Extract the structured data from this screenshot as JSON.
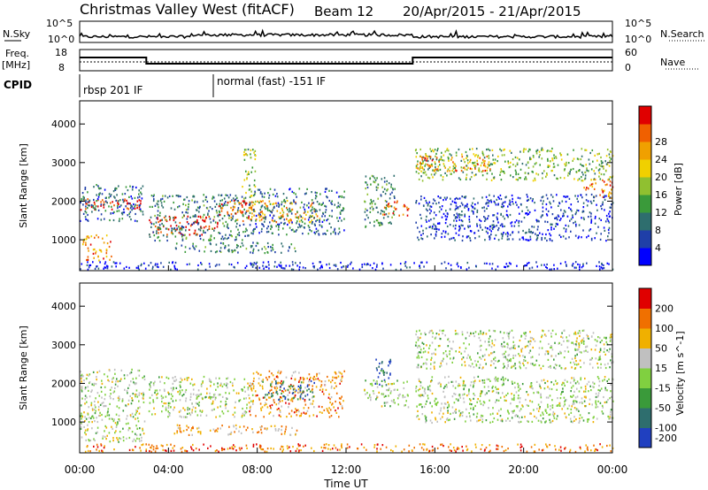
{
  "header": {
    "station": "Christmas Valley West (fitACF)",
    "beam": "Beam 12",
    "dates": "20/Apr/2015 - 21/Apr/2015"
  },
  "nsky": {
    "label": "N.Sky",
    "left_ticks": [
      "10^5",
      "10^0"
    ],
    "right_label": "N.Search",
    "right_ticks": [
      "10^5",
      "10^0"
    ]
  },
  "freq": {
    "label_line1": "Freq.",
    "label_line2": "[MHz]",
    "left_ticks": [
      "18",
      "8"
    ],
    "right_label": "Nave",
    "right_ticks": [
      "60",
      "0"
    ]
  },
  "cpid": {
    "label": "CPID",
    "segments": [
      {
        "label": "rbsp 201 IF",
        "start_hour": 0
      },
      {
        "label": "normal (fast) -151 IF",
        "start_hour": 6
      }
    ]
  },
  "freq_trace": {
    "x_hours": [
      0,
      3,
      3,
      15,
      15,
      24
    ],
    "mhz": [
      13.5,
      13.5,
      10,
      10,
      13.5,
      13.5
    ]
  },
  "chart_data": [
    {
      "type": "heatmap",
      "name": "power-panel",
      "ylabel": "Slant Range [km]",
      "yticks": [
        1000,
        2000,
        3000,
        4000
      ],
      "ylim": [
        200,
        4600
      ],
      "xlim": [
        0,
        24
      ],
      "colorbar": {
        "label": "Power [dB]",
        "ticks": [
          "4",
          "8",
          "12",
          "16",
          "20",
          "24",
          "28"
        ],
        "colors": [
          "#0000ff",
          "#1f3fa8",
          "#2e6e6e",
          "#3a9a3a",
          "#90c030",
          "#f0d000",
          "#f0a000",
          "#f06000",
          "#e00000"
        ]
      },
      "scatter_bands": [
        {
          "t0": 0.0,
          "t1": 2.9,
          "r0": 1800,
          "r1": 2100,
          "level": 0.95
        },
        {
          "t0": 0.0,
          "t1": 2.9,
          "r0": 1500,
          "r1": 2450,
          "level": 0.25
        },
        {
          "t0": 0.1,
          "t1": 1.4,
          "r0": 480,
          "r1": 1150,
          "level": 0.75
        },
        {
          "t0": 3.1,
          "t1": 6.2,
          "r0": 1150,
          "r1": 1650,
          "level": 0.95
        },
        {
          "t0": 3.1,
          "t1": 7.6,
          "r0": 1000,
          "r1": 2200,
          "level": 0.3
        },
        {
          "t0": 6.2,
          "t1": 7.8,
          "r0": 1500,
          "r1": 2050,
          "level": 0.85
        },
        {
          "t0": 7.3,
          "t1": 7.9,
          "r0": 2100,
          "r1": 3400,
          "level": 0.5
        },
        {
          "t0": 4.2,
          "t1": 9.8,
          "r0": 680,
          "r1": 950,
          "level": 0.3
        },
        {
          "t0": 7.6,
          "t1": 10.8,
          "r0": 1450,
          "r1": 2050,
          "level": 0.7
        },
        {
          "t0": 7.6,
          "t1": 11.9,
          "r0": 1150,
          "r1": 2350,
          "level": 0.25
        },
        {
          "t0": 12.8,
          "t1": 14.2,
          "r0": 1350,
          "r1": 2700,
          "level": 0.35
        },
        {
          "t0": 13.6,
          "t1": 14.8,
          "r0": 1650,
          "r1": 2050,
          "level": 0.85
        },
        {
          "t0": 15.1,
          "t1": 24.0,
          "r0": 2550,
          "r1": 3400,
          "level": 0.45
        },
        {
          "t0": 15.1,
          "t1": 18.5,
          "r0": 2800,
          "r1": 3200,
          "level": 0.75
        },
        {
          "t0": 22.6,
          "t1": 24.0,
          "r0": 2100,
          "r1": 2600,
          "level": 0.8
        },
        {
          "t0": 15.1,
          "t1": 24.0,
          "r0": 1000,
          "r1": 2200,
          "level": 0.15
        },
        {
          "t0": 0.0,
          "t1": 24.0,
          "r0": 250,
          "r1": 450,
          "level": 0.1
        }
      ]
    },
    {
      "type": "heatmap",
      "name": "velocity-panel",
      "ylabel": "Slant Range [km]",
      "yticks": [
        1000,
        2000,
        3000,
        4000
      ],
      "ylim": [
        200,
        4600
      ],
      "xlim": [
        0,
        24
      ],
      "xlabel": "Time UT",
      "xticks": [
        "00:00",
        "04:00",
        "08:00",
        "12:00",
        "16:00",
        "20:00",
        "00:00"
      ],
      "colorbar": {
        "label": "Velocity [m s^-1]",
        "ticks": [
          "200",
          "100",
          "50",
          "15",
          "-15",
          "-50",
          "-100",
          "-200"
        ],
        "colors": [
          "#2040c0",
          "#2e6e6e",
          "#3a9a3a",
          "#80d040",
          "#c0c0c0",
          "#f0b000",
          "#f07000",
          "#e00000"
        ]
      },
      "scatter_bands": [
        {
          "t0": 0.0,
          "t1": 2.9,
          "r0": 500,
          "r1": 2400,
          "level": 0.5
        },
        {
          "t0": 3.1,
          "t1": 7.8,
          "r0": 1150,
          "r1": 2200,
          "level": 0.5
        },
        {
          "t0": 7.6,
          "t1": 11.9,
          "r0": 1150,
          "r1": 2350,
          "level": 0.75
        },
        {
          "t0": 8.2,
          "t1": 10.6,
          "r0": 1600,
          "r1": 2100,
          "level": 0.2
        },
        {
          "t0": 4.2,
          "t1": 9.8,
          "r0": 680,
          "r1": 950,
          "level": 0.7
        },
        {
          "t0": 13.2,
          "t1": 14.0,
          "r0": 1950,
          "r1": 2650,
          "level": 0.15
        },
        {
          "t0": 12.8,
          "t1": 14.8,
          "r0": 1400,
          "r1": 2100,
          "level": 0.5
        },
        {
          "t0": 15.1,
          "t1": 24.0,
          "r0": 2400,
          "r1": 3400,
          "level": 0.5
        },
        {
          "t0": 15.1,
          "t1": 24.0,
          "r0": 1000,
          "r1": 2200,
          "level": 0.5
        },
        {
          "t0": 0.0,
          "t1": 24.0,
          "r0": 250,
          "r1": 450,
          "level": 0.8
        }
      ]
    }
  ]
}
